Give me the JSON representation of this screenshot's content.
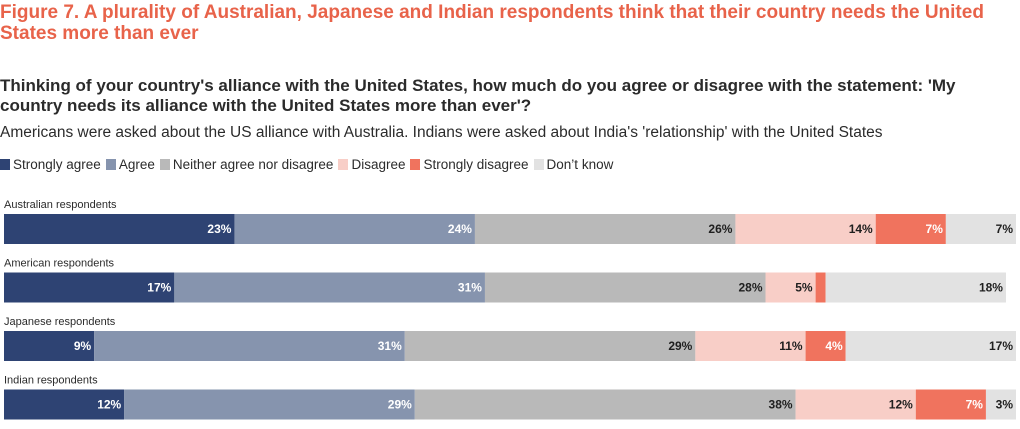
{
  "header": {
    "title": "Figure 7. A plurality of Australian, Japanese and Indian respondents think that their country needs the United States more than ever",
    "question": "Thinking of your country's alliance with the United States, how much do you agree or disagree with the statement: 'My country needs its alliance with the United States more than ever'?",
    "note": "Americans were asked about the US alliance with Australia. Indians were asked about India's 'relationship' with the United States"
  },
  "chart_data": {
    "type": "bar",
    "orientation": "horizontal",
    "stacked": true,
    "legend_position": "top-left",
    "categories": [
      "Australian respondents",
      "American respondents",
      "Japanese respondents",
      "Indian respondents"
    ],
    "series": [
      {
        "name": "Strongly agree",
        "color": "#2e4373",
        "label_color": "#ffffff",
        "values": [
          23,
          17,
          9,
          12
        ],
        "labels": [
          "23%",
          "17%",
          "9%",
          "12%"
        ]
      },
      {
        "name": "Agree",
        "color": "#8694ae",
        "label_color": "#ffffff",
        "values": [
          24,
          31,
          31,
          29
        ],
        "labels": [
          "24%",
          "31%",
          "31%",
          "29%"
        ]
      },
      {
        "name": "Neither agree nor disagree",
        "color": "#b9b9b9",
        "label_color": "#1f1f1f",
        "values": [
          26,
          28,
          29,
          38
        ],
        "labels": [
          "26%",
          "28%",
          "29%",
          "38%"
        ]
      },
      {
        "name": "Disagree",
        "color": "#f8cec7",
        "label_color": "#1f1f1f",
        "values": [
          14,
          5,
          11,
          12
        ],
        "labels": [
          "14%",
          "5%",
          "11%",
          "12%"
        ]
      },
      {
        "name": "Strongly disagree",
        "color": "#f0735e",
        "label_color": "#ffffff",
        "values": [
          7,
          1,
          4,
          7
        ],
        "labels": [
          "7%",
          "",
          "4%",
          "7%"
        ]
      },
      {
        "name": "Don’t know",
        "color": "#e2e2e2",
        "label_color": "#1f1f1f",
        "values": [
          7,
          18,
          17,
          3
        ],
        "labels": [
          "7%",
          "18%",
          "17%",
          "3%"
        ]
      }
    ],
    "xlim": [
      0,
      101
    ]
  }
}
